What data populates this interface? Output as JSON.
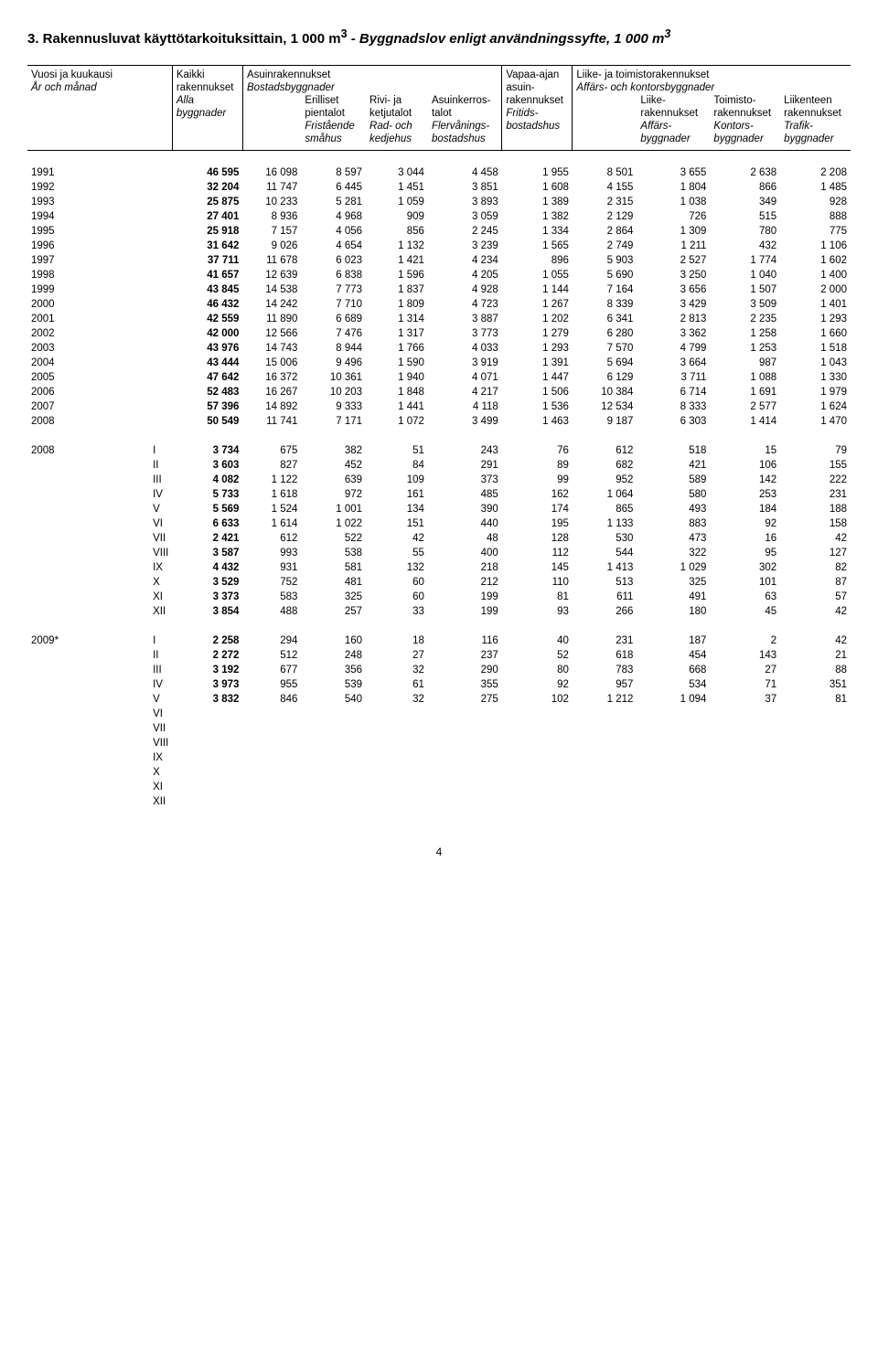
{
  "title_plain": "3. Rakennusluvat käyttötarkoituksittain, 1 000 m",
  "title_sup": "3",
  "title_sep": " - ",
  "title_italic": "Byggnadslov enligt användningssyfte, 1 000 m",
  "title_italic_sup": "3",
  "head": {
    "r1c1": "Vuosi ja  kuukausi",
    "r1c2": "Kaikki",
    "r1c3": "Asuinrakennukset",
    "r1c7": "Vapaa-ajan",
    "r1c8": "Liike- ja  toimistorakennukset",
    "r2c1": "År och månad",
    "r2c2": "rakennukset",
    "r2c3": "Bostadsbyggnader",
    "r2c7": "asuin-",
    "r2c8": "Affärs- och kontorsbyggnader",
    "r3c2": "Alla",
    "r3c4": "Erilliset",
    "r3c5": "Rivi- ja",
    "r3c6": "Asuinkerros-",
    "r3c7": "rakennukset",
    "r3c9": "Liike-",
    "r3c10": "Toimisto-",
    "r3c11": "Liikenteen",
    "r4c2": "byggnader",
    "r4c4": "pientalot",
    "r4c5": "ketjutalot",
    "r4c6": "talot",
    "r4c7": "Fritids-",
    "r4c9": "rakennukset",
    "r4c10": "rakennukset",
    "r4c11": "rakennukset",
    "r5c4": "Fristående",
    "r5c5": "Rad- och",
    "r5c6": "Flervånings-",
    "r5c7": "bostadshus",
    "r5c9": "Affärs-",
    "r5c10": "Kontors-",
    "r5c11": "Trafik-",
    "r6c4": "småhus",
    "r6c5": "kedjehus",
    "r6c6": "bostadshus",
    "r6c9": "byggnader",
    "r6c10": "byggnader",
    "r6c11": "byggnader"
  },
  "years_labels": [
    "1991",
    "1992",
    "1993",
    "1994",
    "1995",
    "1996",
    "1997",
    "1998",
    "1999",
    "2000",
    "2001",
    "2002",
    "2003",
    "2004",
    "2005",
    "2006",
    "2007",
    "2008"
  ],
  "years_rows": [
    [
      "46 595",
      "16 098",
      "8 597",
      "3 044",
      "4 458",
      "1 955",
      "8 501",
      "3 655",
      "2 638",
      "2 208"
    ],
    [
      "32 204",
      "11 747",
      "6 445",
      "1 451",
      "3 851",
      "1 608",
      "4 155",
      "1 804",
      "866",
      "1 485"
    ],
    [
      "25 875",
      "10 233",
      "5 281",
      "1 059",
      "3 893",
      "1 389",
      "2 315",
      "1 038",
      "349",
      "928"
    ],
    [
      "27 401",
      "8 936",
      "4 968",
      "909",
      "3 059",
      "1 382",
      "2 129",
      "726",
      "515",
      "888"
    ],
    [
      "25 918",
      "7 157",
      "4 056",
      "856",
      "2 245",
      "1 334",
      "2 864",
      "1 309",
      "780",
      "775"
    ],
    [
      "31 642",
      "9 026",
      "4 654",
      "1 132",
      "3 239",
      "1 565",
      "2 749",
      "1 211",
      "432",
      "1 106"
    ],
    [
      "37 711",
      "11 678",
      "6 023",
      "1 421",
      "4 234",
      "896",
      "5 903",
      "2 527",
      "1 774",
      "1 602"
    ],
    [
      "41 657",
      "12 639",
      "6 838",
      "1 596",
      "4 205",
      "1 055",
      "5 690",
      "3 250",
      "1 040",
      "1 400"
    ],
    [
      "43 845",
      "14 538",
      "7 773",
      "1 837",
      "4 928",
      "1 144",
      "7 164",
      "3 656",
      "1 507",
      "2 000"
    ],
    [
      "46 432",
      "14 242",
      "7 710",
      "1 809",
      "4 723",
      "1 267",
      "8 339",
      "3 429",
      "3 509",
      "1 401"
    ],
    [
      "42 559",
      "11 890",
      "6 689",
      "1 314",
      "3 887",
      "1 202",
      "6 341",
      "2 813",
      "2 235",
      "1 293"
    ],
    [
      "42 000",
      "12 566",
      "7 476",
      "1 317",
      "3 773",
      "1 279",
      "6 280",
      "3 362",
      "1 258",
      "1 660"
    ],
    [
      "43 976",
      "14 743",
      "8 944",
      "1 766",
      "4 033",
      "1 293",
      "7 570",
      "4 799",
      "1 253",
      "1 518"
    ],
    [
      "43 444",
      "15 006",
      "9 496",
      "1 590",
      "3 919",
      "1 391",
      "5 694",
      "3 664",
      "987",
      "1 043"
    ],
    [
      "47 642",
      "16 372",
      "10 361",
      "1 940",
      "4 071",
      "1 447",
      "6 129",
      "3 711",
      "1 088",
      "1 330"
    ],
    [
      "52 483",
      "16 267",
      "10 203",
      "1 848",
      "4 217",
      "1 506",
      "10 384",
      "6 714",
      "1 691",
      "1 979"
    ],
    [
      "57 396",
      "14 892",
      "9 333",
      "1 441",
      "4 118",
      "1 536",
      "12 534",
      "8 333",
      "2 577",
      "1 624"
    ],
    [
      "50 549",
      "11 741",
      "7 171",
      "1 072",
      "3 499",
      "1 463",
      "9 187",
      "6 303",
      "1 414",
      "1 470"
    ]
  ],
  "block1_year": "2008",
  "block1_labels": [
    "I",
    "II",
    "III",
    "IV",
    "V",
    "VI",
    "VII",
    "VIII",
    "IX",
    "X",
    "XI",
    "XII"
  ],
  "block1_rows": [
    [
      "3 734",
      "675",
      "382",
      "51",
      "243",
      "76",
      "612",
      "518",
      "15",
      "79"
    ],
    [
      "3 603",
      "827",
      "452",
      "84",
      "291",
      "89",
      "682",
      "421",
      "106",
      "155"
    ],
    [
      "4 082",
      "1 122",
      "639",
      "109",
      "373",
      "99",
      "952",
      "589",
      "142",
      "222"
    ],
    [
      "5 733",
      "1 618",
      "972",
      "161",
      "485",
      "162",
      "1 064",
      "580",
      "253",
      "231"
    ],
    [
      "5 569",
      "1 524",
      "1 001",
      "134",
      "390",
      "174",
      "865",
      "493",
      "184",
      "188"
    ],
    [
      "6 633",
      "1 614",
      "1 022",
      "151",
      "440",
      "195",
      "1 133",
      "883",
      "92",
      "158"
    ],
    [
      "2 421",
      "612",
      "522",
      "42",
      "48",
      "128",
      "530",
      "473",
      "16",
      "42"
    ],
    [
      "3 587",
      "993",
      "538",
      "55",
      "400",
      "112",
      "544",
      "322",
      "95",
      "127"
    ],
    [
      "4 432",
      "931",
      "581",
      "132",
      "218",
      "145",
      "1 413",
      "1 029",
      "302",
      "82"
    ],
    [
      "3 529",
      "752",
      "481",
      "60",
      "212",
      "110",
      "513",
      "325",
      "101",
      "87"
    ],
    [
      "3 373",
      "583",
      "325",
      "60",
      "199",
      "81",
      "611",
      "491",
      "63",
      "57"
    ],
    [
      "3 854",
      "488",
      "257",
      "33",
      "199",
      "93",
      "266",
      "180",
      "45",
      "42"
    ]
  ],
  "block2_year": "2009*",
  "block2_labels": [
    "I",
    "II",
    "III",
    "IV",
    "V",
    "VI",
    "VII",
    "VIII",
    "IX",
    "X",
    "XI",
    "XII"
  ],
  "block2_rows": [
    [
      "2 258",
      "294",
      "160",
      "18",
      "116",
      "40",
      "231",
      "187",
      "2",
      "42"
    ],
    [
      "2 272",
      "512",
      "248",
      "27",
      "237",
      "52",
      "618",
      "454",
      "143",
      "21"
    ],
    [
      "3 192",
      "677",
      "356",
      "32",
      "290",
      "80",
      "783",
      "668",
      "27",
      "88"
    ],
    [
      "3 973",
      "955",
      "539",
      "61",
      "355",
      "92",
      "957",
      "534",
      "71",
      "351"
    ],
    [
      "3 832",
      "846",
      "540",
      "32",
      "275",
      "102",
      "1 212",
      "1 094",
      "37",
      "81"
    ],
    [
      "",
      "",
      "",
      "",
      "",
      "",
      "",
      "",
      "",
      ""
    ],
    [
      "",
      "",
      "",
      "",
      "",
      "",
      "",
      "",
      "",
      ""
    ],
    [
      "",
      "",
      "",
      "",
      "",
      "",
      "",
      "",
      "",
      ""
    ],
    [
      "",
      "",
      "",
      "",
      "",
      "",
      "",
      "",
      "",
      ""
    ],
    [
      "",
      "",
      "",
      "",
      "",
      "",
      "",
      "",
      "",
      ""
    ],
    [
      "",
      "",
      "",
      "",
      "",
      "",
      "",
      "",
      "",
      ""
    ],
    [
      "",
      "",
      "",
      "",
      "",
      "",
      "",
      "",
      "",
      ""
    ]
  ],
  "page_number": "4"
}
